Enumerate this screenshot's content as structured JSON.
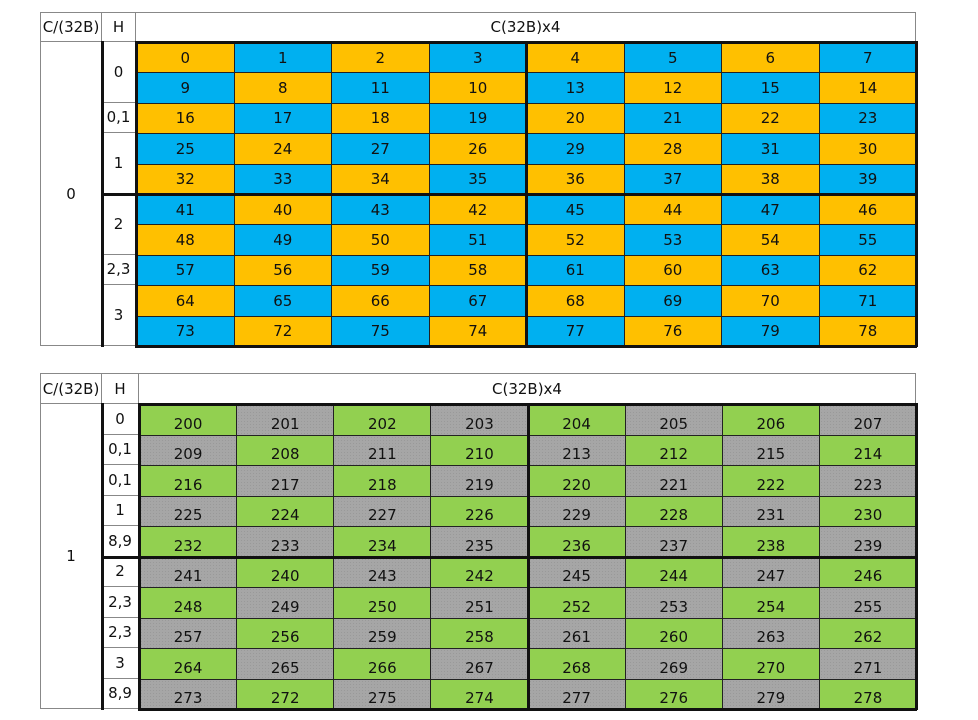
{
  "colors": {
    "orange": "#FFC000",
    "blue": "#00B0F0",
    "green": "#92D050",
    "gray": "#A6A6A6"
  },
  "tables": [
    {
      "header": {
        "c_label": "C/(32B)",
        "h_label": "H",
        "main_label": "C(32B)x4"
      },
      "c_value": "0",
      "h_groups": [
        {
          "label": "0",
          "rows": 2
        },
        {
          "label": "0,1",
          "rows": 1
        },
        {
          "label": "1",
          "rows": 2
        },
        {
          "label": "2",
          "rows": 2
        },
        {
          "label": "2,3",
          "rows": 1
        },
        {
          "label": "3",
          "rows": 2
        }
      ],
      "palette": [
        "orange",
        "blue"
      ],
      "rows": [
        [
          "0",
          "1",
          "2",
          "3",
          "4",
          "5",
          "6",
          "7"
        ],
        [
          "9",
          "8",
          "11",
          "10",
          "13",
          "12",
          "15",
          "14"
        ],
        [
          "16",
          "17",
          "18",
          "19",
          "20",
          "21",
          "22",
          "23"
        ],
        [
          "25",
          "24",
          "27",
          "26",
          "29",
          "28",
          "31",
          "30"
        ],
        [
          "32",
          "33",
          "34",
          "35",
          "36",
          "37",
          "38",
          "39"
        ],
        [
          "41",
          "40",
          "43",
          "42",
          "45",
          "44",
          "47",
          "46"
        ],
        [
          "48",
          "49",
          "50",
          "51",
          "52",
          "53",
          "54",
          "55"
        ],
        [
          "57",
          "56",
          "59",
          "58",
          "61",
          "60",
          "63",
          "62"
        ],
        [
          "64",
          "65",
          "66",
          "67",
          "68",
          "69",
          "70",
          "71"
        ],
        [
          "73",
          "72",
          "75",
          "74",
          "77",
          "76",
          "79",
          "78"
        ]
      ]
    },
    {
      "header": {
        "c_label": "C/(32B)",
        "h_label": "H",
        "main_label": "C(32B)x4"
      },
      "c_value": "1",
      "h_groups": [
        {
          "label": "0",
          "rows": 1
        },
        {
          "label": "0,1",
          "rows": 1
        },
        {
          "label": "0,1",
          "rows": 1
        },
        {
          "label": "1",
          "rows": 1
        },
        {
          "label": "8,9",
          "rows": 1
        },
        {
          "label": "2",
          "rows": 1
        },
        {
          "label": "2,3",
          "rows": 1
        },
        {
          "label": "2,3",
          "rows": 1
        },
        {
          "label": "3",
          "rows": 1
        },
        {
          "label": "8,9",
          "rows": 1
        }
      ],
      "palette": [
        "green",
        "gray"
      ],
      "rows": [
        [
          "200",
          "201",
          "202",
          "203",
          "204",
          "205",
          "206",
          "207"
        ],
        [
          "209",
          "208",
          "211",
          "210",
          "213",
          "212",
          "215",
          "214"
        ],
        [
          "216",
          "217",
          "218",
          "219",
          "220",
          "221",
          "222",
          "223"
        ],
        [
          "225",
          "224",
          "227",
          "226",
          "229",
          "228",
          "231",
          "230"
        ],
        [
          "232",
          "233",
          "234",
          "235",
          "236",
          "237",
          "238",
          "239"
        ],
        [
          "241",
          "240",
          "243",
          "242",
          "245",
          "244",
          "247",
          "246"
        ],
        [
          "248",
          "249",
          "250",
          "251",
          "252",
          "253",
          "254",
          "255"
        ],
        [
          "257",
          "256",
          "259",
          "258",
          "261",
          "260",
          "263",
          "262"
        ],
        [
          "264",
          "265",
          "266",
          "267",
          "268",
          "269",
          "270",
          "271"
        ],
        [
          "273",
          "272",
          "275",
          "274",
          "277",
          "276",
          "279",
          "278"
        ]
      ]
    }
  ]
}
